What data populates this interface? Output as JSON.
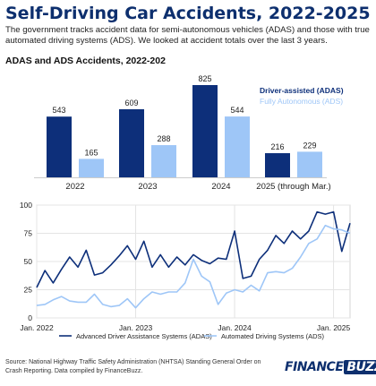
{
  "header": {
    "title": "Self-Driving Car Accidents, 2022-2025",
    "subtitle": "The government tracks accident data for semi-autonomous vehicles (ADAS) and those with true automated driving systems (ADS). We looked at accident totals over the last 3 years."
  },
  "colors": {
    "adas": "#0d2f7a",
    "ads": "#9ec6f7",
    "title": "#0d2f6e"
  },
  "chart_data": [
    {
      "type": "bar",
      "title": "ADAS and ADS Accidents, 2022-202",
      "categories": [
        "2022",
        "2023",
        "2024",
        "2025 (through Mar.)"
      ],
      "series": [
        {
          "name": "Driver-assisted (ADAS)",
          "values": [
            543,
            609,
            825,
            216
          ]
        },
        {
          "name": "Fully Autonomous (ADS)",
          "values": [
            165,
            288,
            544,
            229
          ]
        }
      ],
      "ylim": [
        0,
        900
      ],
      "legend": "top-right"
    },
    {
      "type": "line",
      "x": [
        "2022-01",
        "2022-02",
        "2022-03",
        "2022-04",
        "2022-05",
        "2022-06",
        "2022-07",
        "2022-08",
        "2022-09",
        "2022-10",
        "2022-11",
        "2022-12",
        "2023-01",
        "2023-02",
        "2023-03",
        "2023-04",
        "2023-05",
        "2023-06",
        "2023-07",
        "2023-08",
        "2023-09",
        "2023-10",
        "2023-11",
        "2023-12",
        "2024-01",
        "2024-02",
        "2024-03",
        "2024-04",
        "2024-05",
        "2024-06",
        "2024-07",
        "2024-08",
        "2024-09",
        "2024-10",
        "2024-11",
        "2024-12",
        "2025-01",
        "2025-02",
        "2025-03"
      ],
      "x_tick_labels": [
        "Jan. 2022",
        "Jan. 2023",
        "Jan. 2024",
        "Jan. 2025"
      ],
      "yticks": [
        0,
        25,
        50,
        75,
        100
      ],
      "ylim": [
        0,
        100
      ],
      "grid": true,
      "series": [
        {
          "name": "Advanced Driver Assistance Systems (ADAS)",
          "values": [
            27,
            42,
            31,
            43,
            54,
            45,
            60,
            38,
            40,
            47,
            55,
            64,
            52,
            68,
            45,
            56,
            45,
            54,
            47,
            56,
            51,
            48,
            53,
            52,
            77,
            35,
            37,
            52,
            60,
            73,
            66,
            77,
            70,
            77,
            94,
            92,
            94,
            59,
            84
          ]
        },
        {
          "name": "Automated Driving Systems (ADS)",
          "values": [
            11,
            12,
            16,
            19,
            15,
            14,
            14,
            21,
            12,
            10,
            11,
            17,
            9,
            17,
            23,
            21,
            23,
            23,
            31,
            52,
            37,
            32,
            12,
            22,
            25,
            23,
            29,
            24,
            40,
            41,
            40,
            44,
            54,
            66,
            70,
            82,
            79,
            78,
            75
          ]
        }
      ],
      "legend": "bottom"
    }
  ],
  "footer": {
    "source": "Source: National Highway Traffic Safety Administration (NHTSA) Standing General Order on Crash Reporting. Data compiled by FinanceBuzz.",
    "brand_part1": "FINANCE",
    "brand_part2": "BUZZ"
  }
}
